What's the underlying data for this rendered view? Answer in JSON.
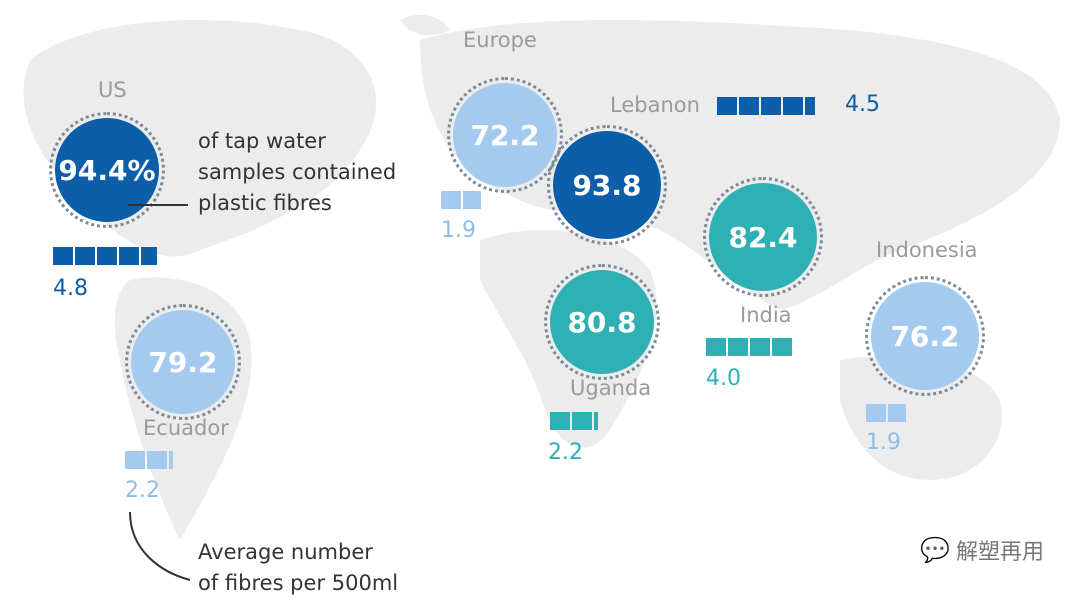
{
  "colors": {
    "dark_blue": "#0c5ea8",
    "light_blue": "#a4cbef",
    "teal": "#2fb0b4",
    "map": "#ececec",
    "label": "#9a9a9a"
  },
  "regions": [
    {
      "id": "us",
      "name": "US",
      "percent": "94.4%",
      "fibres": 4.8,
      "fibres_label": "4.8",
      "color": "#0c5ea8"
    },
    {
      "id": "ecuador",
      "name": "Ecuador",
      "percent": "79.2",
      "fibres": 2.2,
      "fibres_label": "2.2",
      "color": "#a4cbef"
    },
    {
      "id": "europe",
      "name": "Europe",
      "percent": "72.2",
      "fibres": 1.9,
      "fibres_label": "1.9",
      "color": "#a4cbef"
    },
    {
      "id": "lebanon",
      "name": "Lebanon",
      "percent": "93.8",
      "fibres": 4.5,
      "fibres_label": "4.5",
      "color": "#0c5ea8"
    },
    {
      "id": "uganda",
      "name": "Uganda",
      "percent": "80.8",
      "fibres": 2.2,
      "fibres_label": "2.2",
      "color": "#2fb0b4"
    },
    {
      "id": "india",
      "name": "India",
      "percent": "82.4",
      "fibres": 4.0,
      "fibres_label": "4.0",
      "color": "#2fb0b4"
    },
    {
      "id": "indonesia",
      "name": "Indonesia",
      "percent": "76.2",
      "fibres": 1.9,
      "fibres_label": "1.9",
      "color": "#a4cbef"
    }
  ],
  "annotations": {
    "percent_note": [
      "of tap water",
      "samples contained",
      "plastic fibres"
    ],
    "fibres_note": [
      "Average number",
      "of fibres per 500ml"
    ]
  },
  "watermark": {
    "icon": "wechat-icon",
    "text": "解塑再用"
  }
}
